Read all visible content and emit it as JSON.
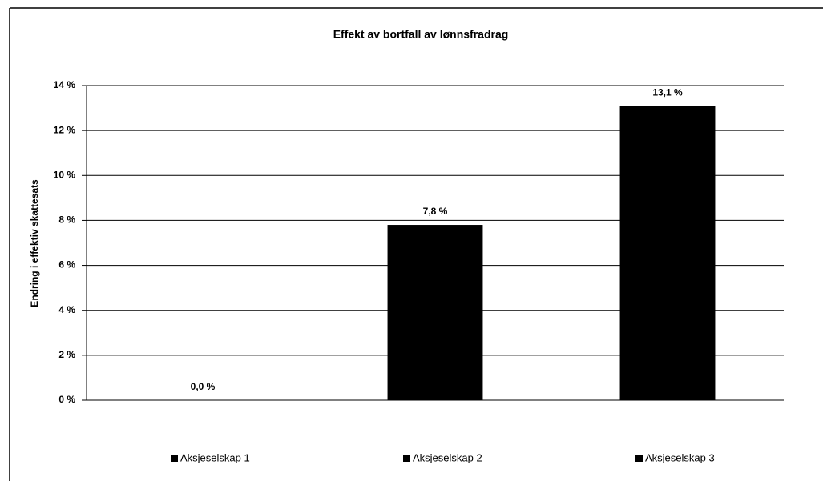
{
  "chart_data": {
    "type": "bar",
    "title": "Effekt av bortfall av lønnsfradrag",
    "ylabel": "Endring i effektiv skattesats",
    "categories": [
      "Aksjeselskap 1",
      "Aksjeselskap 2",
      "Aksjeselskap 3"
    ],
    "values": [
      0,
      7.8,
      13.1
    ],
    "value_labels": [
      "0,0 %",
      "7,8 %",
      "13,1 %"
    ],
    "color": "#000000",
    "ylim": [
      0,
      14
    ],
    "yticks": [
      {
        "value": 0,
        "label": "0 %"
      },
      {
        "value": 2,
        "label": "2 %"
      },
      {
        "value": 4,
        "label": "4 %"
      },
      {
        "value": 6,
        "label": "6 %"
      },
      {
        "value": 8,
        "label": "8 %"
      },
      {
        "value": 10,
        "label": "10 %"
      },
      {
        "value": 12,
        "label": "12 %"
      },
      {
        "value": 14,
        "label": "14 %"
      }
    ],
    "grid": true,
    "legend": "bottom"
  }
}
